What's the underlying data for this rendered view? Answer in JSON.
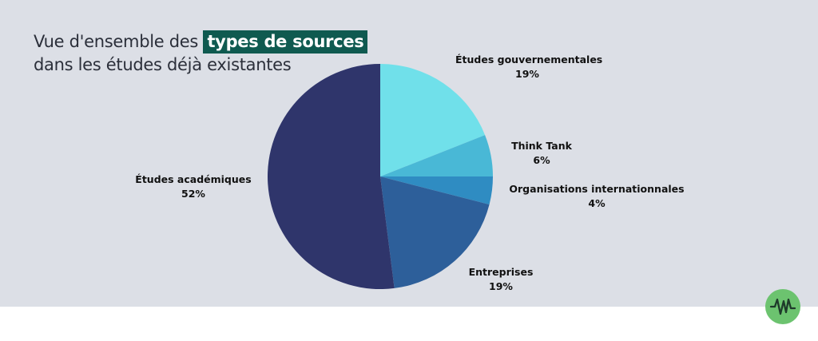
{
  "title": {
    "line1_prefix": "Vue d'ensemble des",
    "line1_highlight": "types de sources",
    "line2": "dans les études déjà existantes"
  },
  "colors": {
    "background_panel": "#dcdfe6",
    "highlight_bg": "#0f5a50",
    "logo": "#6cc36f"
  },
  "chart_data": {
    "type": "pie",
    "title": "Vue d'ensemble des types de sources dans les études déjà existantes",
    "slices": [
      {
        "label": "Études gouvernementales",
        "value": 19,
        "display": "19%",
        "color": "#70e0ea"
      },
      {
        "label": "Think Tank",
        "value": 6,
        "display": "6%",
        "color": "#49b8d6"
      },
      {
        "label": "Organisations internationnales",
        "value": 4,
        "display": "4%",
        "color": "#2f8cc2"
      },
      {
        "label": "Entreprises",
        "value": 19,
        "display": "19%",
        "color": "#2d5f9a"
      },
      {
        "label": "Études académiques",
        "value": 52,
        "display": "52%",
        "color": "#2f356b"
      }
    ]
  },
  "logo": {
    "icon": "waveform-icon"
  }
}
